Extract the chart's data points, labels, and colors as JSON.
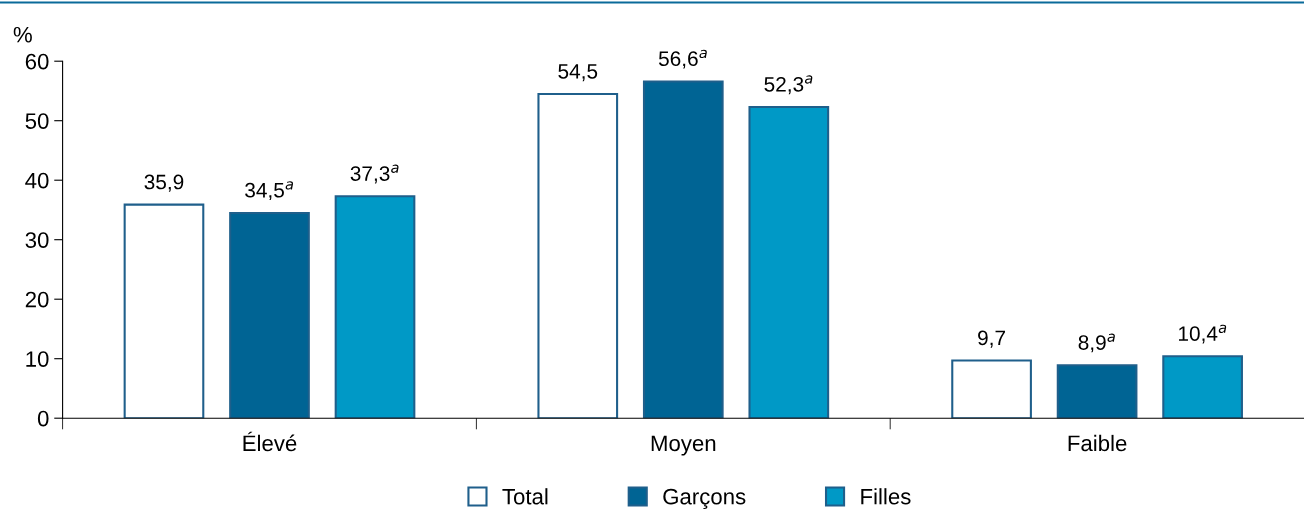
{
  "chart_data": {
    "type": "bar",
    "ylabel": "%",
    "categories": [
      "Élevé",
      "Moyen",
      "Faible"
    ],
    "series": [
      {
        "name": "Total",
        "color": "#ffffff",
        "values": [
          35.9,
          54.5,
          9.7
        ],
        "value_labels": [
          "35,9",
          "54,5",
          "9,7"
        ]
      },
      {
        "name": "Garçons",
        "color": "#006494",
        "values": [
          34.5,
          56.6,
          8.9
        ],
        "value_labels": [
          "34,5$^{a}$",
          "56,6$^{a}$",
          "8,9$^{a}$"
        ]
      },
      {
        "name": "Filles",
        "color": "#0099c6",
        "values": [
          37.3,
          52.3,
          10.4
        ],
        "value_labels": [
          "37,3$^{a}$",
          "52,3$^{a}$",
          "10,4$^{a}$"
        ]
      }
    ],
    "ylim": [
      0,
      60
    ],
    "yticks": [
      0,
      10,
      20,
      30,
      40,
      50,
      60
    ],
    "grid": false,
    "legend": "bottom"
  }
}
